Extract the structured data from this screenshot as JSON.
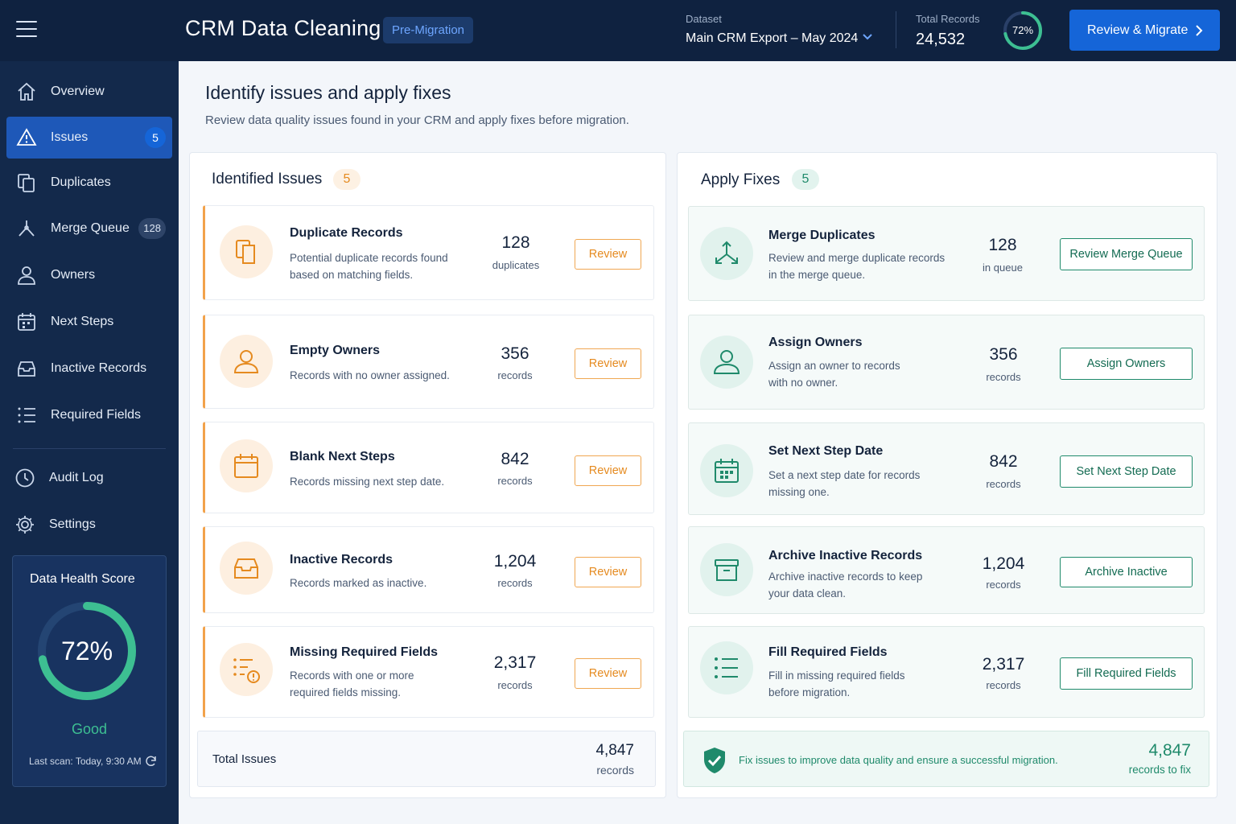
{
  "topbar": {
    "title": "CRM Data Cleaning",
    "stage_pill": "Pre-Migration",
    "dataset_label": "Dataset",
    "dataset_value": "Main CRM Export – May 2024",
    "total_records_label": "Total Records",
    "total_records_value": "24,532",
    "health_progress": 0.72,
    "health_progress_label": "72%",
    "cta_label": "Review & Migrate",
    "colors": {
      "background": "#0f2240",
      "cta": "#1565d8",
      "ring": "#3dbf92"
    }
  },
  "sidebar": {
    "items": [
      {
        "label": "Overview",
        "icon": "home-icon"
      },
      {
        "label": "Issues",
        "icon": "warning-icon",
        "badge": "5",
        "active": true
      },
      {
        "label": "Duplicates",
        "icon": "duplicate-icon"
      },
      {
        "label": "Merge Queue",
        "icon": "merge-icon",
        "badge": "128"
      },
      {
        "label": "Owners",
        "icon": "user-icon"
      },
      {
        "label": "Next Steps",
        "icon": "calendar-icon"
      },
      {
        "label": "Inactive Records",
        "icon": "inbox-icon"
      },
      {
        "label": "Required Fields",
        "icon": "list-icon"
      },
      {
        "label": "Audit Log",
        "icon": "clock-icon"
      },
      {
        "label": "Settings",
        "icon": "gear-icon"
      }
    ],
    "health": {
      "title": "Data Health Score",
      "score": 0.72,
      "score_label": "72%",
      "status": "Good",
      "last_scan": "Last scan: Today, 9:30 AM"
    }
  },
  "main": {
    "title": "Identify issues and apply fixes",
    "subtitle": "Review data quality issues found in your CRM and apply fixes before migration.",
    "issues_panel": {
      "title": "Identified Issues",
      "count": "5",
      "review_label": "Review",
      "items": [
        {
          "title": "Duplicate Records",
          "desc": "Potential duplicate records found based on matching fields.",
          "num": "128",
          "unit": "duplicates",
          "icon": "duplicate-icon"
        },
        {
          "title": "Empty Owners",
          "desc": "Records with no owner assigned.",
          "num": "356",
          "unit": "records",
          "icon": "user-icon"
        },
        {
          "title": "Blank Next Steps",
          "desc": "Records missing next step date.",
          "num": "842",
          "unit": "records",
          "icon": "calendar-icon"
        },
        {
          "title": "Inactive Records",
          "desc": "Records marked as inactive.",
          "num": "1,204",
          "unit": "records",
          "icon": "inbox-icon"
        },
        {
          "title": "Missing Required Fields",
          "desc": "Records with one or more required fields missing.",
          "num": "2,317",
          "unit": "records",
          "icon": "list-alert-icon"
        }
      ],
      "total_label": "Total Issues",
      "total_num": "4,847",
      "total_unit": "records"
    },
    "fixes_panel": {
      "title": "Apply Fixes",
      "count": "5",
      "items": [
        {
          "title": "Merge Duplicates",
          "desc": "Review and merge duplicate records in the merge queue.",
          "num": "128",
          "unit": "in queue",
          "button": "Review Merge Queue",
          "icon": "merge-icon"
        },
        {
          "title": "Assign Owners",
          "desc": "Assign an owner to records with no owner.",
          "num": "356",
          "unit": "records",
          "button": "Assign Owners",
          "icon": "user-icon"
        },
        {
          "title": "Set Next Step Date",
          "desc": "Set a next step date for records missing one.",
          "num": "842",
          "unit": "records",
          "button": "Set Next Step Date",
          "icon": "calendar-icon"
        },
        {
          "title": "Archive Inactive Records",
          "desc": "Archive inactive records to keep your data clean.",
          "num": "1,204",
          "unit": "records",
          "button": "Archive Inactive",
          "icon": "archive-icon"
        },
        {
          "title": "Fill Required Fields",
          "desc": "Fill in missing required fields before migration.",
          "num": "2,317",
          "unit": "records",
          "button": "Fill Required Fields",
          "icon": "list-icon"
        }
      ],
      "summary_text": "Fix issues to improve data quality and ensure a successful migration.",
      "summary_num": "4,847",
      "summary_unit": "records to fix"
    }
  }
}
